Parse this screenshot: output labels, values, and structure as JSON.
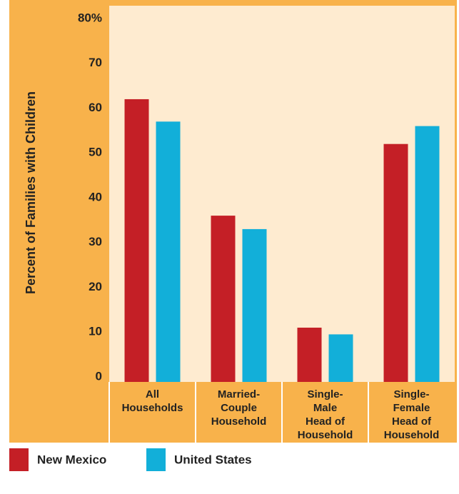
{
  "chart_data": {
    "type": "bar",
    "y_axis_label": "Percent of Families with Children",
    "categories": [
      [
        "All",
        "Households"
      ],
      [
        "Married-",
        "Couple",
        "Household"
      ],
      [
        "Single-",
        "Male",
        "Head of",
        "Household"
      ],
      [
        "Single-",
        "Female",
        "Head of",
        "Household"
      ]
    ],
    "series": [
      {
        "name": "New Mexico",
        "color": "#c41f26",
        "values": [
          62,
          36,
          11,
          52
        ]
      },
      {
        "name": "United States",
        "color": "#12afd9",
        "values": [
          57,
          33,
          9.5,
          56
        ]
      }
    ],
    "ylim": [
      0,
      80
    ],
    "yticks": [
      0,
      10,
      20,
      30,
      40,
      50,
      60,
      70,
      {
        "value": 80,
        "label": "80%"
      }
    ]
  }
}
